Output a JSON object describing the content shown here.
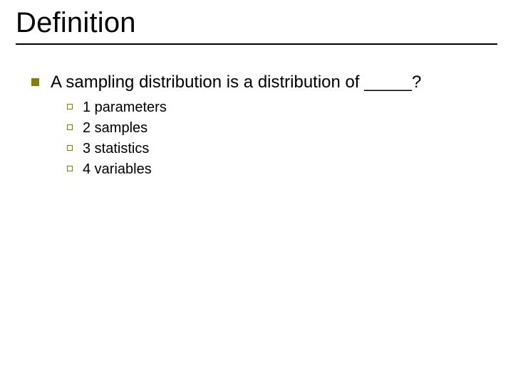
{
  "slide": {
    "title": "Definition",
    "main_bullet": "A sampling distribution is a distribution of _____?",
    "options": [
      "1 parameters",
      "2 samples",
      "3 statistics",
      "4 variables"
    ]
  },
  "style": {
    "background_color": "#ffffff",
    "text_color": "#000000",
    "bullet_color": "#808000",
    "title_fontsize": 40,
    "body_fontsize": 24,
    "sub_fontsize": 20,
    "title_underline_color": "#000000",
    "title_underline_width": 2,
    "l1_bullet_shape": "filled-square",
    "l2_bullet_shape": "hollow-square"
  }
}
